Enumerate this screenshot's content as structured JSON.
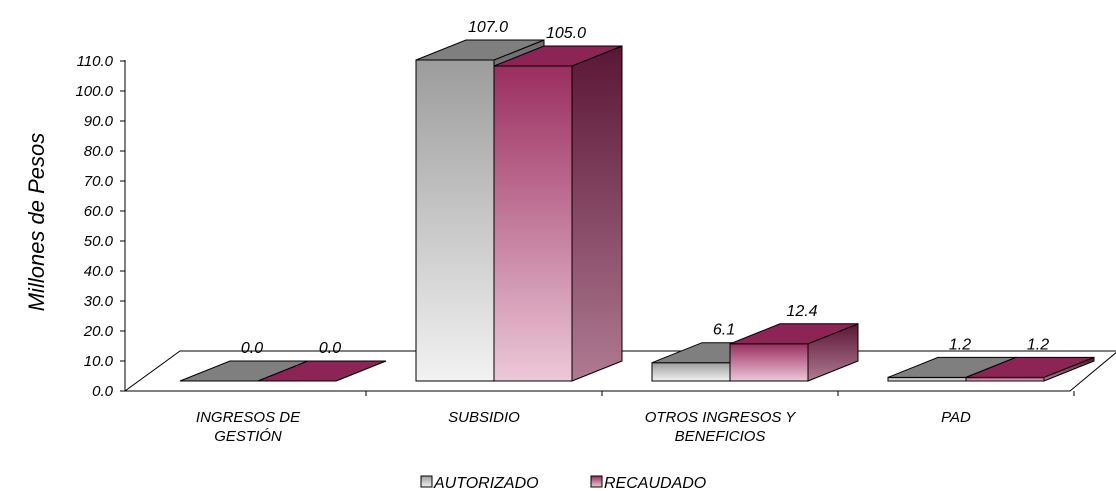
{
  "chart_data": {
    "type": "bar",
    "ylabel": "Millones de Pesos",
    "ylim": [
      0,
      110
    ],
    "ytick_step": 10,
    "ytick_labels": [
      "0.0",
      "10.0",
      "20.0",
      "30.0",
      "40.0",
      "50.0",
      "60.0",
      "70.0",
      "80.0",
      "90.0",
      "100.0",
      "110.0"
    ],
    "categories": [
      [
        "INGRESOS DE",
        "GESTIÓN"
      ],
      [
        "SUBSIDIO"
      ],
      [
        "OTROS INGRESOS Y",
        "BENEFICIOS"
      ],
      [
        "PAD"
      ]
    ],
    "series": [
      {
        "name": "AUTORIZADO",
        "values": [
          0.0,
          107.0,
          6.1,
          1.2
        ],
        "labels": [
          "0.0",
          "107.0",
          "6.1",
          "1.2"
        ]
      },
      {
        "name": "RECAUDADO",
        "values": [
          0.0,
          105.0,
          12.4,
          1.2
        ],
        "labels": [
          "0.0",
          "105.0",
          "12.4",
          "1.2"
        ]
      }
    ],
    "legend_position": "bottom",
    "grid": false,
    "colors": {
      "autorizado_top": "#7f7f7f",
      "autorizado_front_top": "#9c9c9c",
      "autorizado_front_bottom": "#f2f2f2",
      "autorizado_side": "#8a8a8a",
      "recaudado_top": "#8c2456",
      "recaudado_front_top": "#9a2e60",
      "recaudado_front_bottom": "#ecc8d8",
      "recaudado_side": "#5f1a3a"
    }
  }
}
